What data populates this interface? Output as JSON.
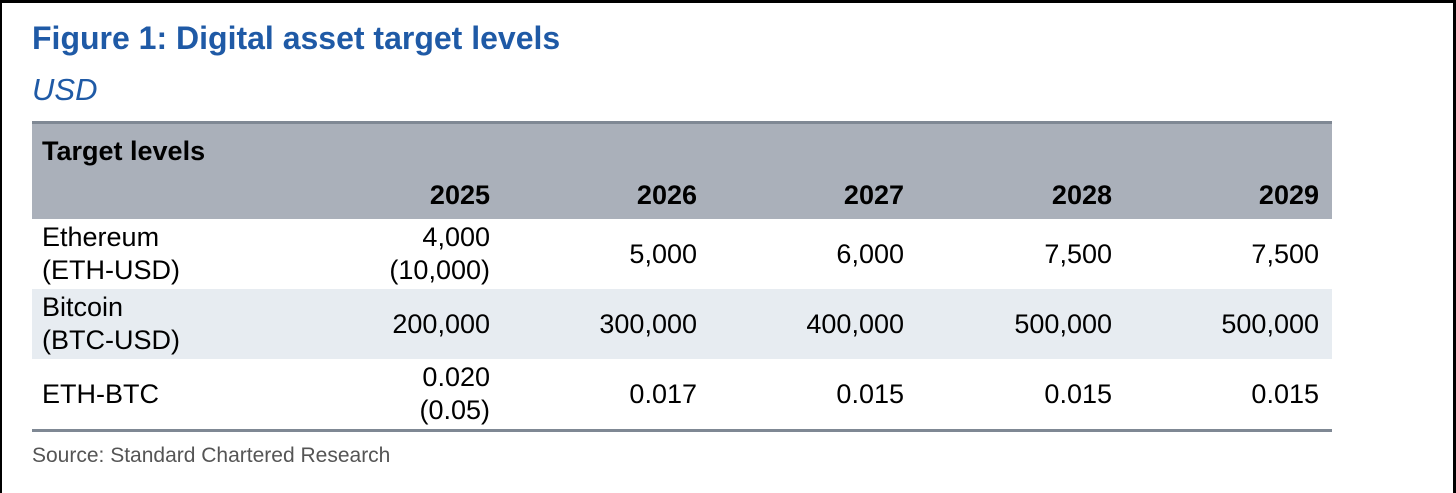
{
  "figure": {
    "title": "Figure 1: Digital asset target levels",
    "subtitle": "USD"
  },
  "table": {
    "heading": "Target levels",
    "years": [
      "2025",
      "2026",
      "2027",
      "2028",
      "2029"
    ],
    "rows": [
      {
        "label_line1": "Ethereum",
        "label_line2": "(ETH-USD)",
        "values": [
          {
            "main": "4,000",
            "alt": "(10,000)"
          },
          {
            "main": "5,000",
            "alt": ""
          },
          {
            "main": "6,000",
            "alt": ""
          },
          {
            "main": "7,500",
            "alt": ""
          },
          {
            "main": "7,500",
            "alt": ""
          }
        ]
      },
      {
        "label_line1": "Bitcoin",
        "label_line2": "(BTC-USD)",
        "values": [
          {
            "main": "200,000",
            "alt": ""
          },
          {
            "main": "300,000",
            "alt": ""
          },
          {
            "main": "400,000",
            "alt": ""
          },
          {
            "main": "500,000",
            "alt": ""
          },
          {
            "main": "500,000",
            "alt": ""
          }
        ]
      },
      {
        "label_line1": "ETH-BTC",
        "label_line2": "",
        "values": [
          {
            "main": "0.020",
            "alt": "(0.05)"
          },
          {
            "main": "0.017",
            "alt": ""
          },
          {
            "main": "0.015",
            "alt": ""
          },
          {
            "main": "0.015",
            "alt": ""
          },
          {
            "main": "0.015",
            "alt": ""
          }
        ]
      }
    ]
  },
  "source": "Source: Standard Chartered Research",
  "colors": {
    "title_blue": "#1f5aa6",
    "header_gray": "#aab0ba",
    "row_shade": "#e7ecf1"
  }
}
